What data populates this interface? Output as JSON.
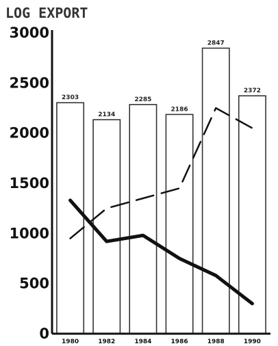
{
  "chart_data": {
    "type": "bar",
    "title": "LOG EXPORT",
    "xlabel": "",
    "ylabel": "",
    "ylim": [
      0,
      3000
    ],
    "yticks": [
      0,
      500,
      1000,
      1500,
      2000,
      2500,
      3000
    ],
    "categories": [
      "1980",
      "1982",
      "1984",
      "1986",
      "1988",
      "1990"
    ],
    "series": [
      {
        "type": "bar",
        "values": [
          2303,
          2134,
          2285,
          2186,
          2847,
          2372
        ],
        "data_labels": [
          "2303",
          "2134",
          "2285",
          "2186",
          "2847",
          "2372"
        ]
      },
      {
        "type": "line",
        "style": "solid",
        "values": [
          1330,
          920,
          980,
          750,
          580,
          300
        ]
      },
      {
        "type": "line",
        "style": "dashed",
        "values": [
          950,
          1250,
          1350,
          1450,
          2250,
          2050
        ]
      }
    ],
    "grid": false,
    "legend": "none",
    "colors": {
      "bar_stroke": "#333333",
      "line": "#111111",
      "text": "#111111"
    }
  }
}
